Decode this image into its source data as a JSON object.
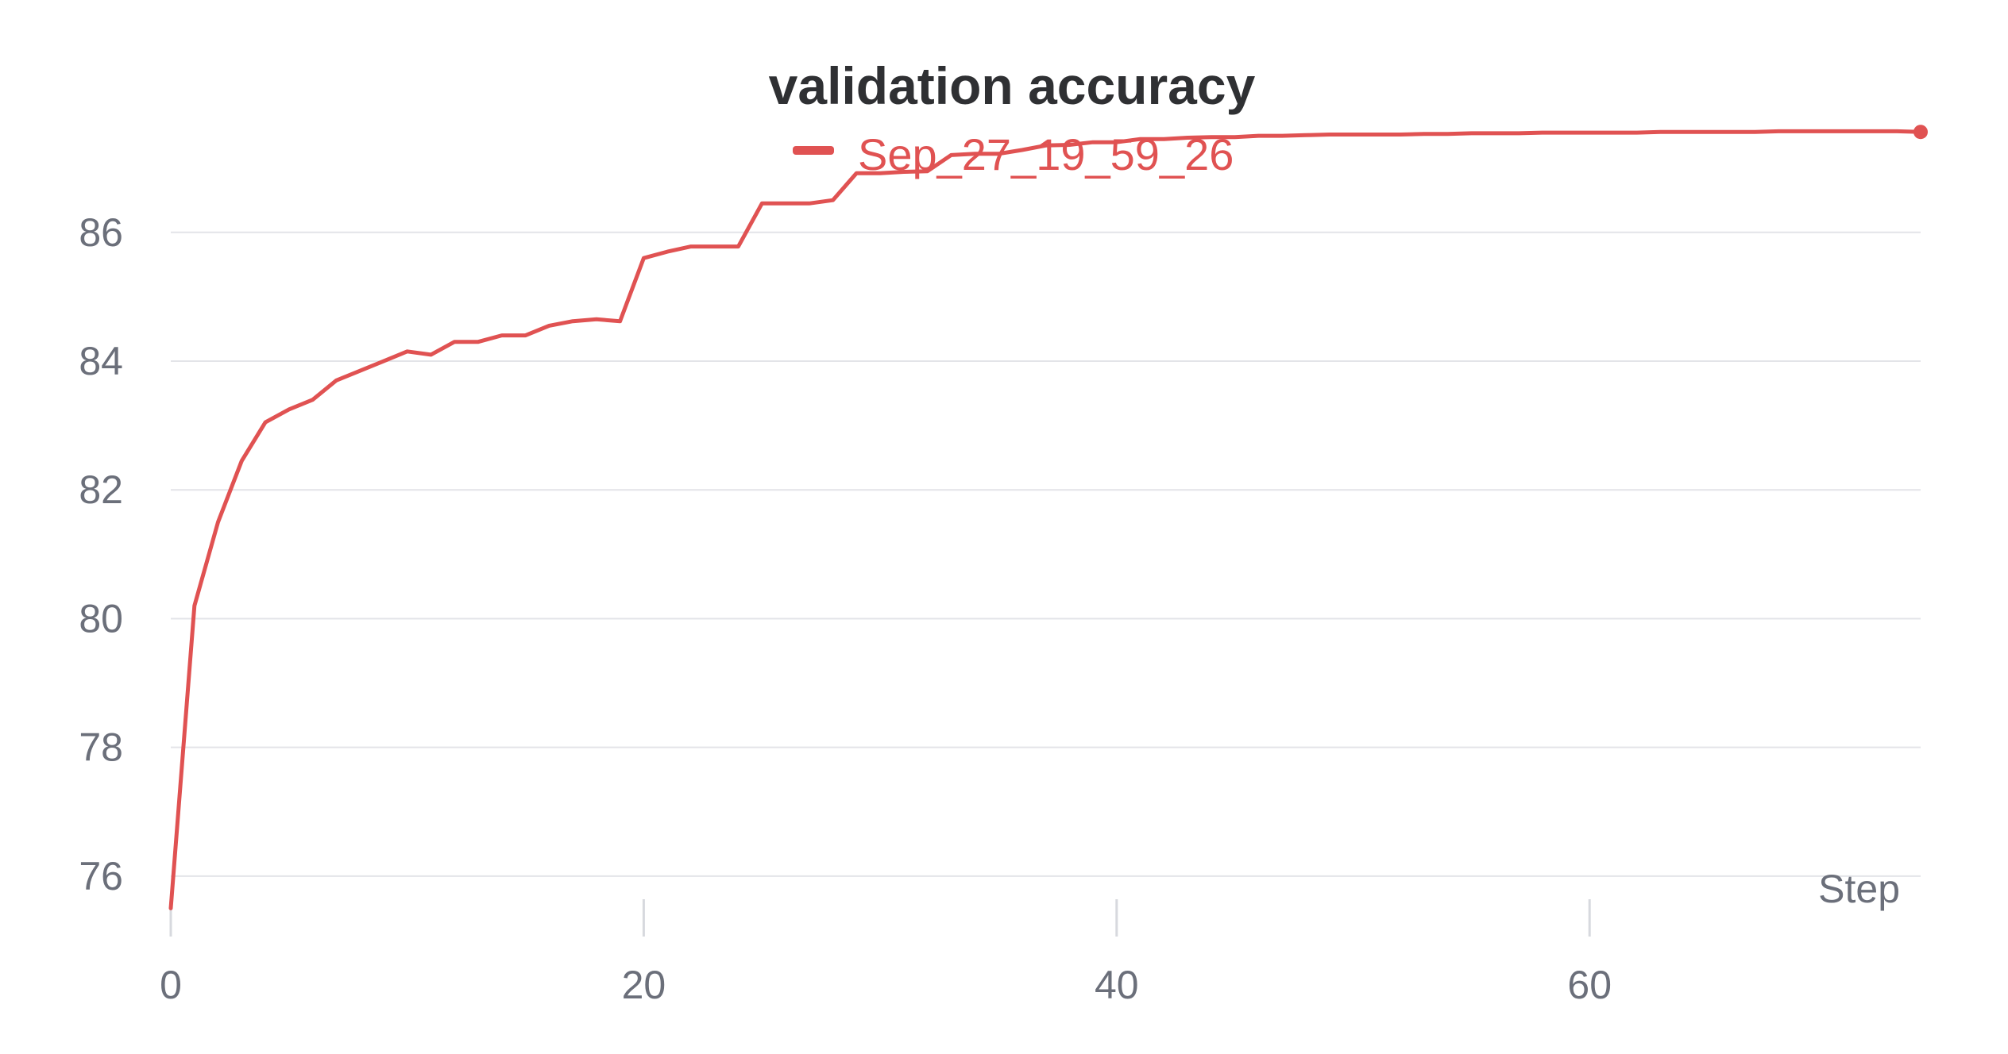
{
  "chart_data": {
    "type": "line",
    "title": "validation accuracy",
    "xlabel": "Step",
    "ylabel": "",
    "xlim": [
      0,
      74
    ],
    "ylim": [
      75,
      88.5
    ],
    "x_ticks": [
      0,
      20,
      40,
      60
    ],
    "y_ticks": [
      76,
      78,
      80,
      82,
      84,
      86
    ],
    "grid": true,
    "legend_position": "top-center",
    "series": [
      {
        "name": "Sep_27_19_59_26",
        "color": "#e05252",
        "x": [
          0,
          1,
          2,
          3,
          4,
          5,
          6,
          7,
          8,
          9,
          10,
          11,
          12,
          13,
          14,
          15,
          16,
          17,
          18,
          19,
          20,
          21,
          22,
          23,
          24,
          25,
          26,
          27,
          28,
          29,
          30,
          31,
          32,
          33,
          34,
          35,
          36,
          37,
          38,
          39,
          40,
          41,
          42,
          43,
          44,
          45,
          46,
          47,
          48,
          49,
          50,
          51,
          52,
          53,
          54,
          55,
          56,
          57,
          58,
          59,
          60,
          61,
          62,
          63,
          64,
          65,
          66,
          67,
          68,
          69,
          70,
          71,
          72,
          73,
          74
        ],
        "values": [
          75.5,
          80.2,
          81.5,
          82.45,
          83.05,
          83.25,
          83.4,
          83.7,
          83.85,
          84.0,
          84.15,
          84.1,
          84.3,
          84.3,
          84.4,
          84.4,
          84.55,
          84.62,
          84.65,
          84.62,
          85.6,
          85.7,
          85.78,
          85.78,
          85.78,
          86.45,
          86.45,
          86.45,
          86.5,
          86.92,
          86.92,
          86.94,
          86.95,
          87.2,
          87.22,
          87.22,
          87.28,
          87.35,
          87.36,
          87.4,
          87.4,
          87.45,
          87.45,
          87.47,
          87.48,
          87.48,
          87.5,
          87.5,
          87.51,
          87.52,
          87.52,
          87.52,
          87.52,
          87.53,
          87.53,
          87.54,
          87.54,
          87.54,
          87.55,
          87.55,
          87.55,
          87.55,
          87.55,
          87.56,
          87.56,
          87.56,
          87.56,
          87.56,
          87.57,
          87.57,
          87.57,
          87.57,
          87.57,
          87.57,
          87.56
        ]
      }
    ]
  }
}
